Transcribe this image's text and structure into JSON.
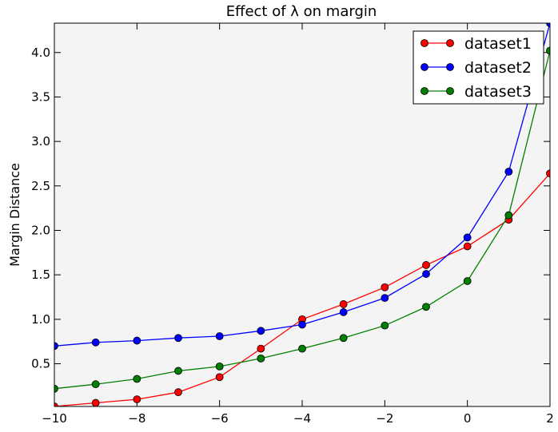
{
  "chart_data": {
    "type": "line",
    "title": "Effect of λ on margin",
    "xlabel": "",
    "ylabel": "Margin Distance",
    "xlim": [
      -10,
      2
    ],
    "ylim": [
      0.02,
      4.33
    ],
    "xticks": [
      -10,
      -8,
      -6,
      -4,
      -2,
      0,
      2
    ],
    "xtick_labels": [
      "−10",
      "−8",
      "−6",
      "−4",
      "−2",
      "0",
      "2"
    ],
    "yticks": [
      0.5,
      1.0,
      1.5,
      2.0,
      2.5,
      3.0,
      3.5,
      4.0
    ],
    "ytick_labels": [
      "0.5",
      "1.0",
      "1.5",
      "2.0",
      "2.5",
      "3.0",
      "3.5",
      "4.0"
    ],
    "grid": false,
    "legend_position": "top-right",
    "plot_background": "#f4f4f4",
    "x": [
      -10,
      -9,
      -8,
      -7,
      -6,
      -5,
      -4,
      -3,
      -2,
      -1,
      0,
      1,
      2
    ],
    "series": [
      {
        "name": "dataset1",
        "color": "#ff0000",
        "values": [
          0.02,
          0.06,
          0.1,
          0.18,
          0.35,
          0.67,
          1.0,
          1.17,
          1.36,
          1.61,
          1.82,
          2.12,
          2.64
        ]
      },
      {
        "name": "dataset2",
        "color": "#0000ff",
        "values": [
          0.7,
          0.74,
          0.76,
          0.79,
          0.81,
          0.87,
          0.94,
          1.08,
          1.24,
          1.51,
          1.92,
          2.66,
          4.33
        ]
      },
      {
        "name": "dataset3",
        "color": "#008000",
        "values": [
          0.22,
          0.27,
          0.33,
          0.42,
          0.47,
          0.56,
          0.67,
          0.79,
          0.93,
          1.14,
          1.43,
          2.17,
          4.02
        ]
      }
    ]
  }
}
